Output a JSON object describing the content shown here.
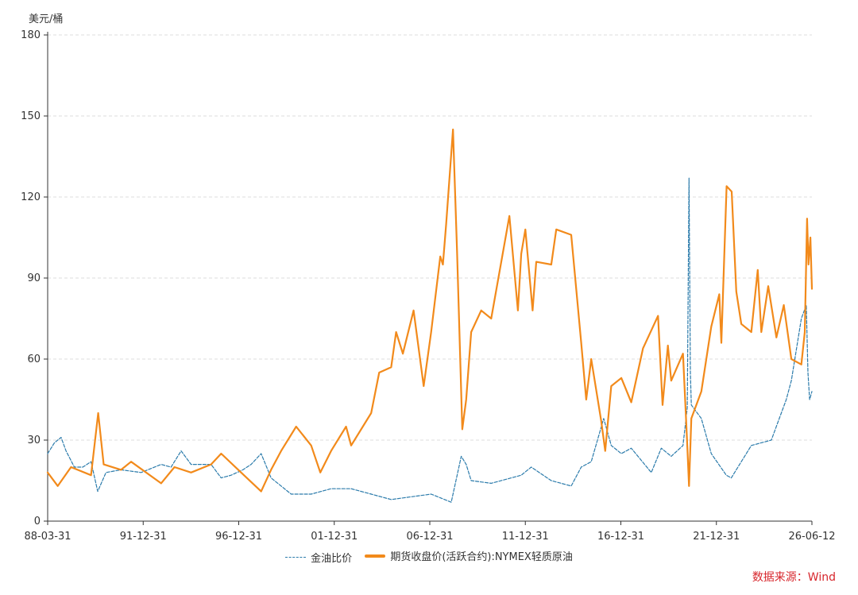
{
  "chart_data": {
    "type": "line",
    "unit_label": "美元/桶",
    "ylim": [
      0,
      180
    ],
    "y_ticks": [
      0,
      30,
      60,
      90,
      120,
      150,
      180
    ],
    "x_tick_labels": [
      "88-03-31",
      "91-12-31",
      "96-12-31",
      "01-12-31",
      "06-12-31",
      "11-12-31",
      "16-12-31",
      "21-12-31",
      "26-06-12"
    ],
    "x_range": [
      "1988-03-31",
      "2026-06-12"
    ],
    "grid": true,
    "legend_position": "bottom",
    "series": [
      {
        "name": "金油比价",
        "color": "#2b7bab",
        "style": "dashed",
        "points": [
          [
            "1988-03-31",
            25
          ],
          [
            "1988-08-01",
            29
          ],
          [
            "1988-12-01",
            31
          ],
          [
            "1989-03-01",
            26
          ],
          [
            "1989-08-01",
            20
          ],
          [
            "1990-01-01",
            20
          ],
          [
            "1990-06-01",
            22
          ],
          [
            "1990-10-01",
            11
          ],
          [
            "1991-03-01",
            18
          ],
          [
            "1991-12-01",
            19
          ],
          [
            "1992-12-01",
            18
          ],
          [
            "1993-12-01",
            21
          ],
          [
            "1994-06-01",
            20
          ],
          [
            "1994-12-01",
            26
          ],
          [
            "1995-06-01",
            21
          ],
          [
            "1996-06-01",
            21
          ],
          [
            "1996-12-01",
            16
          ],
          [
            "1997-06-01",
            17
          ],
          [
            "1998-01-01",
            19
          ],
          [
            "1998-06-01",
            21
          ],
          [
            "1998-12-01",
            25
          ],
          [
            "1999-06-01",
            16
          ],
          [
            "2000-06-01",
            10
          ],
          [
            "2001-06-01",
            10
          ],
          [
            "2001-12-01",
            11
          ],
          [
            "2002-06-01",
            12
          ],
          [
            "2003-06-01",
            12
          ],
          [
            "2004-06-01",
            10
          ],
          [
            "2005-06-01",
            8
          ],
          [
            "2006-06-01",
            9
          ],
          [
            "2007-06-01",
            10
          ],
          [
            "2008-06-01",
            7
          ],
          [
            "2008-12-01",
            24
          ],
          [
            "2009-03-01",
            21
          ],
          [
            "2009-06-01",
            15
          ],
          [
            "2010-06-01",
            14
          ],
          [
            "2011-06-01",
            16
          ],
          [
            "2011-12-01",
            17
          ],
          [
            "2012-06-01",
            20
          ],
          [
            "2013-06-01",
            15
          ],
          [
            "2014-06-01",
            13
          ],
          [
            "2014-12-01",
            20
          ],
          [
            "2015-06-01",
            22
          ],
          [
            "2016-01-15",
            38
          ],
          [
            "2016-06-01",
            28
          ],
          [
            "2016-12-01",
            25
          ],
          [
            "2017-06-01",
            27
          ],
          [
            "2018-06-01",
            18
          ],
          [
            "2018-12-01",
            27
          ],
          [
            "2019-06-01",
            24
          ],
          [
            "2020-01-01",
            28
          ],
          [
            "2020-03-20",
            42
          ],
          [
            "2020-04-20",
            127
          ],
          [
            "2020-05-15",
            55
          ],
          [
            "2020-06-01",
            43
          ],
          [
            "2020-12-01",
            38
          ],
          [
            "2021-06-01",
            25
          ],
          [
            "2022-03-01",
            17
          ],
          [
            "2022-06-01",
            16
          ],
          [
            "2022-12-01",
            22
          ],
          [
            "2023-06-01",
            28
          ],
          [
            "2024-06-01",
            30
          ],
          [
            "2025-03-01",
            45
          ],
          [
            "2025-06-01",
            52
          ],
          [
            "2025-12-01",
            75
          ],
          [
            "2026-03-01",
            80
          ],
          [
            "2026-04-01",
            55
          ],
          [
            "2026-05-01",
            45
          ],
          [
            "2026-06-12",
            48
          ]
        ]
      },
      {
        "name": "期货收盘价(活跃合约):NYMEX轻质原油",
        "color": "#f28a1b",
        "style": "solid",
        "points": [
          [
            "1988-03-31",
            18
          ],
          [
            "1988-10-01",
            13
          ],
          [
            "1989-06-01",
            20
          ],
          [
            "1990-06-01",
            17
          ],
          [
            "1990-10-10",
            40
          ],
          [
            "1991-01-17",
            21
          ],
          [
            "1991-12-01",
            19
          ],
          [
            "1992-06-01",
            22
          ],
          [
            "1993-12-01",
            14
          ],
          [
            "1994-08-01",
            20
          ],
          [
            "1995-06-01",
            18
          ],
          [
            "1996-06-01",
            21
          ],
          [
            "1996-12-01",
            25
          ],
          [
            "1997-12-01",
            18
          ],
          [
            "1998-12-01",
            11
          ],
          [
            "1999-06-01",
            19
          ],
          [
            "1999-12-01",
            26
          ],
          [
            "2000-09-01",
            35
          ],
          [
            "2001-06-01",
            28
          ],
          [
            "2001-11-15",
            18
          ],
          [
            "2002-06-01",
            26
          ],
          [
            "2003-03-01",
            35
          ],
          [
            "2003-06-01",
            28
          ],
          [
            "2004-06-01",
            40
          ],
          [
            "2004-10-25",
            55
          ],
          [
            "2005-06-01",
            57
          ],
          [
            "2005-08-30",
            70
          ],
          [
            "2006-01-01",
            62
          ],
          [
            "2006-07-15",
            78
          ],
          [
            "2007-01-15",
            50
          ],
          [
            "2007-06-01",
            70
          ],
          [
            "2007-11-15",
            98
          ],
          [
            "2008-01-01",
            95
          ],
          [
            "2008-03-01",
            110
          ],
          [
            "2008-07-03",
            145
          ],
          [
            "2008-09-15",
            100
          ],
          [
            "2008-12-20",
            34
          ],
          [
            "2009-03-01",
            45
          ],
          [
            "2009-06-01",
            70
          ],
          [
            "2009-12-01",
            78
          ],
          [
            "2010-06-01",
            75
          ],
          [
            "2011-04-29",
            113
          ],
          [
            "2011-10-01",
            78
          ],
          [
            "2011-12-01",
            99
          ],
          [
            "2012-02-15",
            108
          ],
          [
            "2012-06-25",
            78
          ],
          [
            "2012-09-01",
            96
          ],
          [
            "2013-06-01",
            95
          ],
          [
            "2013-09-01",
            108
          ],
          [
            "2014-06-01",
            106
          ],
          [
            "2014-12-01",
            66
          ],
          [
            "2015-03-01",
            45
          ],
          [
            "2015-06-01",
            60
          ],
          [
            "2015-12-01",
            37
          ],
          [
            "2016-02-11",
            26
          ],
          [
            "2016-06-01",
            50
          ],
          [
            "2016-12-01",
            53
          ],
          [
            "2017-06-01",
            44
          ],
          [
            "2018-01-01",
            64
          ],
          [
            "2018-10-03",
            76
          ],
          [
            "2018-12-24",
            43
          ],
          [
            "2019-04-01",
            65
          ],
          [
            "2019-06-01",
            52
          ],
          [
            "2020-01-01",
            62
          ],
          [
            "2020-03-15",
            30
          ],
          [
            "2020-04-20",
            13
          ],
          [
            "2020-06-01",
            38
          ],
          [
            "2020-12-01",
            48
          ],
          [
            "2021-06-01",
            72
          ],
          [
            "2021-10-25",
            84
          ],
          [
            "2021-12-01",
            66
          ],
          [
            "2022-03-08",
            124
          ],
          [
            "2022-06-08",
            122
          ],
          [
            "2022-09-01",
            85
          ],
          [
            "2022-12-01",
            73
          ],
          [
            "2023-06-01",
            70
          ],
          [
            "2023-09-27",
            93
          ],
          [
            "2023-12-01",
            70
          ],
          [
            "2024-04-05",
            87
          ],
          [
            "2024-09-01",
            68
          ],
          [
            "2025-01-15",
            80
          ],
          [
            "2025-06-01",
            60
          ],
          [
            "2025-12-01",
            58
          ],
          [
            "2026-02-01",
            70
          ],
          [
            "2026-03-15",
            112
          ],
          [
            "2026-04-10",
            95
          ],
          [
            "2026-05-15",
            105
          ],
          [
            "2026-06-12",
            86
          ]
        ]
      }
    ]
  },
  "legend": {
    "items": [
      "金油比价",
      "期货收盘价(活跃合约):NYMEX轻质原油"
    ]
  },
  "source": "数据来源：Wind"
}
